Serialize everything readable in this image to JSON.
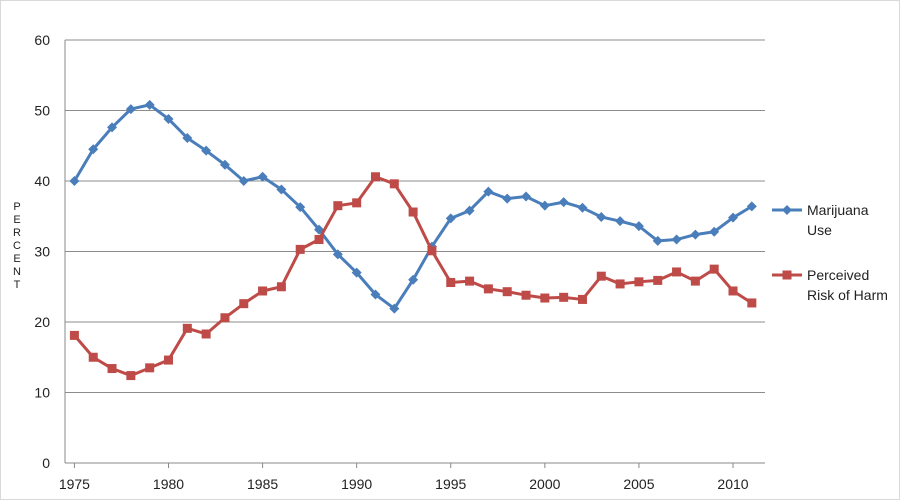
{
  "chart_data": {
    "type": "line",
    "title": "",
    "xlabel": "",
    "ylabel": "PERCENT",
    "xlim": [
      1975,
      2011
    ],
    "ylim": [
      0,
      60
    ],
    "x_ticks": [
      1975,
      1980,
      1985,
      1990,
      1995,
      2000,
      2005,
      2010
    ],
    "y_ticks": [
      0,
      10,
      20,
      30,
      40,
      50,
      60
    ],
    "grid": "horizontal",
    "legend_position": "right",
    "x": [
      1975,
      1976,
      1977,
      1978,
      1979,
      1980,
      1981,
      1982,
      1983,
      1984,
      1985,
      1986,
      1987,
      1988,
      1989,
      1990,
      1991,
      1992,
      1993,
      1994,
      1995,
      1996,
      1997,
      1998,
      1999,
      2000,
      2001,
      2002,
      2003,
      2004,
      2005,
      2006,
      2007,
      2008,
      2009,
      2010,
      2011
    ],
    "series": [
      {
        "name_lines": [
          "Marijuana",
          "Use"
        ],
        "color": "#4a7ebb",
        "marker": "diamond",
        "values": [
          40.0,
          44.5,
          47.6,
          50.2,
          50.8,
          48.8,
          46.1,
          44.3,
          42.3,
          40.0,
          40.6,
          38.8,
          36.3,
          33.1,
          29.6,
          27.0,
          23.9,
          21.9,
          26.0,
          30.7,
          34.7,
          35.8,
          38.5,
          37.5,
          37.8,
          36.5,
          37.0,
          36.2,
          34.9,
          34.3,
          33.6,
          31.5,
          31.7,
          32.4,
          32.8,
          34.8,
          36.4
        ]
      },
      {
        "name_lines": [
          "Perceived",
          "Risk of Harm"
        ],
        "color": "#be4b48",
        "marker": "square",
        "values": [
          18.1,
          15.0,
          13.4,
          12.4,
          13.5,
          14.6,
          19.1,
          18.3,
          20.6,
          22.6,
          24.4,
          25.0,
          30.3,
          31.7,
          36.5,
          36.9,
          40.6,
          39.6,
          35.6,
          30.1,
          25.6,
          25.8,
          24.7,
          24.3,
          23.8,
          23.4,
          23.5,
          23.2,
          26.5,
          25.4,
          25.7,
          25.9,
          27.1,
          25.8,
          27.5,
          24.4,
          22.7
        ]
      }
    ]
  }
}
